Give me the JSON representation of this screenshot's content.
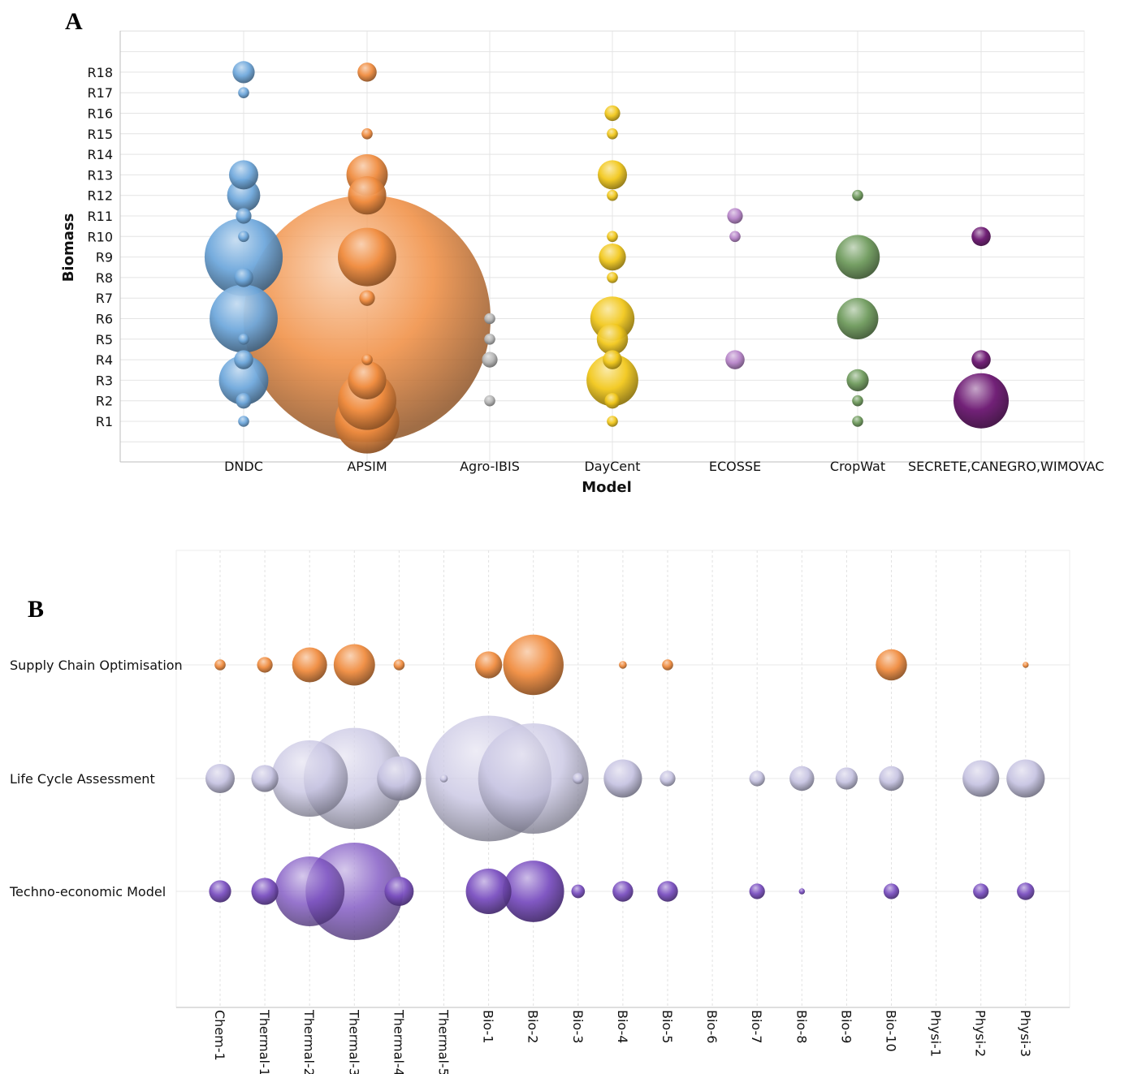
{
  "panel_labels": {
    "a": "A",
    "b": "B"
  },
  "chart_data": [
    {
      "type": "scatter",
      "subtype": "bubble",
      "panel": "A",
      "xlabel": "Model",
      "ylabel": "Biomass",
      "categories": [
        "DNDC",
        "APSIM",
        "Agro-IBIS",
        "DayCent",
        "ECOSSE",
        "CropWat",
        "SECRETE,CANEGRO,WIMOVAC"
      ],
      "y_categories": [
        "R1",
        "R2",
        "R3",
        "R4",
        "R5",
        "R6",
        "R7",
        "R8",
        "R9",
        "R10",
        "R11",
        "R12",
        "R13",
        "R14",
        "R15",
        "R16",
        "R17",
        "R18"
      ],
      "grid": true,
      "colors": {
        "DNDC": "#6fa8dc",
        "APSIM": "#f08c3f",
        "Agro-IBIS": "#b5b5b5",
        "DayCent": "#f2c81c",
        "ECOSSE": "#b784c9",
        "CropWat": "#6e9a5c",
        "SECRETE,CANEGRO,WIMOVAC": "#6a1570"
      },
      "series": [
        {
          "model": "DNDC",
          "points": [
            {
              "y": "R1",
              "size": 1
            },
            {
              "y": "R2",
              "size": 2
            },
            {
              "y": "R3",
              "size": 20
            },
            {
              "y": "R4",
              "size": 3
            },
            {
              "y": "R5",
              "size": 1
            },
            {
              "y": "R6",
              "size": 38
            },
            {
              "y": "R8",
              "size": 3
            },
            {
              "y": "R9",
              "size": 50
            },
            {
              "y": "R10",
              "size": 1
            },
            {
              "y": "R11",
              "size": 2
            },
            {
              "y": "R12",
              "size": 9
            },
            {
              "y": "R13",
              "size": 7
            },
            {
              "y": "R17",
              "size": 1
            },
            {
              "y": "R18",
              "size": 4
            }
          ]
        },
        {
          "model": "APSIM",
          "points": [
            {
              "y": "R1",
              "size": 34
            },
            {
              "y": "R2",
              "size": 28
            },
            {
              "y": "R3",
              "size": 12
            },
            {
              "y": "R4",
              "size": 1
            },
            {
              "y": "R6",
              "size": 500
            },
            {
              "y": "R7",
              "size": 2
            },
            {
              "y": "R9",
              "size": 28
            },
            {
              "y": "R12",
              "size": 12
            },
            {
              "y": "R13",
              "size": 14
            },
            {
              "y": "R15",
              "size": 1
            },
            {
              "y": "R18",
              "size": 3
            }
          ]
        },
        {
          "model": "Agro-IBIS",
          "points": [
            {
              "y": "R2",
              "size": 1
            },
            {
              "y": "R4",
              "size": 2
            },
            {
              "y": "R5",
              "size": 1
            },
            {
              "y": "R6",
              "size": 1
            }
          ]
        },
        {
          "model": "DayCent",
          "points": [
            {
              "y": "R1",
              "size": 1
            },
            {
              "y": "R2",
              "size": 2
            },
            {
              "y": "R3",
              "size": 22
            },
            {
              "y": "R4",
              "size": 3
            },
            {
              "y": "R5",
              "size": 8
            },
            {
              "y": "R6",
              "size": 16
            },
            {
              "y": "R8",
              "size": 1
            },
            {
              "y": "R9",
              "size": 6
            },
            {
              "y": "R10",
              "size": 1
            },
            {
              "y": "R12",
              "size": 1
            },
            {
              "y": "R13",
              "size": 7
            },
            {
              "y": "R15",
              "size": 1
            },
            {
              "y": "R16",
              "size": 2
            }
          ]
        },
        {
          "model": "ECOSSE",
          "points": [
            {
              "y": "R4",
              "size": 3
            },
            {
              "y": "R10",
              "size": 1
            },
            {
              "y": "R11",
              "size": 2
            }
          ]
        },
        {
          "model": "CropWat",
          "points": [
            {
              "y": "R1",
              "size": 1
            },
            {
              "y": "R2",
              "size": 1
            },
            {
              "y": "R3",
              "size": 4
            },
            {
              "y": "R6",
              "size": 14
            },
            {
              "y": "R9",
              "size": 16
            },
            {
              "y": "R12",
              "size": 1
            }
          ]
        },
        {
          "model": "SECRETE,CANEGRO,WIMOVAC",
          "points": [
            {
              "y": "R2",
              "size": 25
            },
            {
              "y": "R4",
              "size": 3
            },
            {
              "y": "R10",
              "size": 3
            }
          ]
        }
      ]
    },
    {
      "type": "scatter",
      "subtype": "bubble",
      "panel": "B",
      "xlabel": "",
      "ylabel": "",
      "categories": [
        "Chem-1",
        "Thermal-1",
        "Thermal-2",
        "Thermal-3",
        "Thermal-4",
        "Thermal-5",
        "Bio-1",
        "Bio-2",
        "Bio-3",
        "Bio-4",
        "Bio-5",
        "Bio-6",
        "Bio-7",
        "Bio-8",
        "Bio-9",
        "Bio-10",
        "Physi-1",
        "Physi-2",
        "Physi-3"
      ],
      "y_categories": [
        "Supply Chain Optimisation",
        "Life Cycle Assessment",
        "Techno-economic Model"
      ],
      "grid": true,
      "colors": {
        "Supply Chain Optimisation": "#f08c3f",
        "Life Cycle Assessment": "#c7c4e2",
        "Techno-economic Model": "#7a4fc0"
      },
      "series": [
        {
          "name": "Supply Chain Optimisation",
          "values": [
            1,
            2,
            10,
            14,
            1,
            0,
            6,
            30,
            0,
            0.5,
            1,
            0,
            0,
            0,
            0,
            8,
            0,
            0,
            0.3
          ]
        },
        {
          "name": "Life Cycle Assessment",
          "values": [
            7,
            6,
            48,
            84,
            16,
            0.5,
            130,
            100,
            1,
            12,
            2,
            0,
            2,
            5,
            4,
            5,
            0,
            11,
            12
          ]
        },
        {
          "name": "Techno-economic Model",
          "values": [
            4,
            6,
            40,
            78,
            7,
            0,
            17,
            31,
            1.5,
            3.5,
            3.5,
            0,
            2,
            0.3,
            0,
            2,
            0,
            2,
            2.5
          ]
        }
      ]
    }
  ]
}
